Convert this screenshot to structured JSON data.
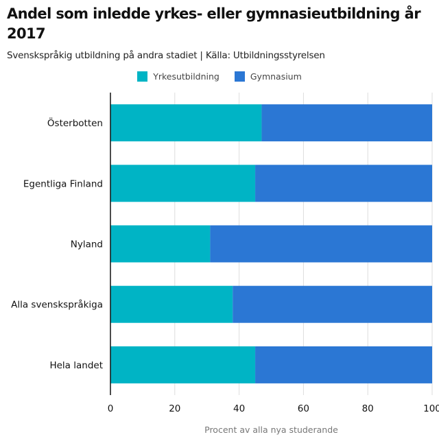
{
  "colors": {
    "yrkes": "#00b4c5",
    "gymnasium": "#2b77d4",
    "grid": "#dddddd",
    "axis": "#111111"
  },
  "chart_data": {
    "type": "bar",
    "orientation": "horizontal",
    "stacked": true,
    "title": "Andel som inledde yrkes- eller gymnasieutbildning år 2017",
    "subtitle": "Svenskspråkig utbildning på andra stadiet | Källa: Utbildningsstyrelsen",
    "xlabel": "Procent av alla nya studerande",
    "ylabel": "",
    "xlim": [
      0,
      100
    ],
    "x_ticks": [
      "0",
      "20",
      "40",
      "60",
      "80",
      "100"
    ],
    "grid": true,
    "legend_position": "top-center",
    "categories": [
      "Österbotten",
      "Egentliga Finland",
      "Nyland",
      "Alla svenskspråkiga",
      "Hela landet"
    ],
    "series": [
      {
        "name": "Yrkesutbildning",
        "values": [
          47,
          45,
          31,
          38,
          45
        ]
      },
      {
        "name": "Gymnasium",
        "values": [
          53,
          55,
          69,
          62,
          55
        ]
      }
    ]
  }
}
